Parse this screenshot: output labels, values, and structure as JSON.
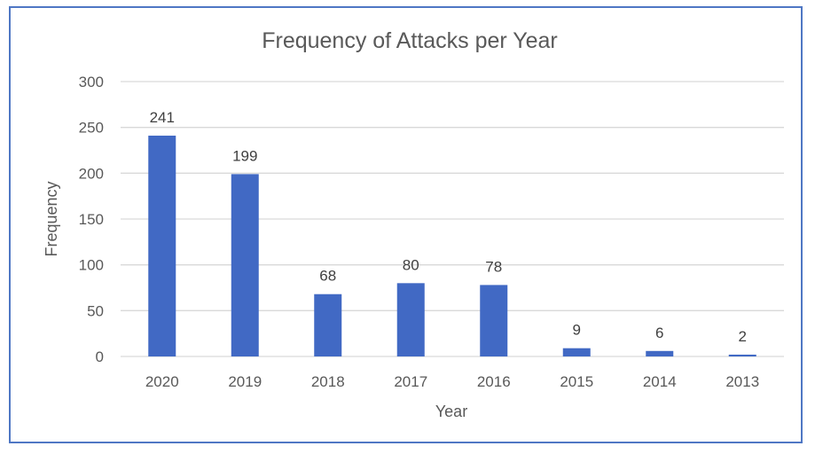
{
  "chart_data": {
    "type": "bar",
    "title": "Frequency of Attacks per Year",
    "xlabel": "Year",
    "ylabel": "Frequency",
    "categories": [
      "2020",
      "2019",
      "2018",
      "2017",
      "2016",
      "2015",
      "2014",
      "2013"
    ],
    "values": [
      241,
      199,
      68,
      80,
      78,
      9,
      6,
      2
    ],
    "data_labels": [
      "241",
      "199",
      "68",
      "80",
      "78",
      "9",
      "6",
      "2"
    ],
    "y_ticks": [
      "0",
      "50",
      "100",
      "150",
      "200",
      "250",
      "300"
    ],
    "ylim": [
      0,
      300
    ],
    "grid": true,
    "legend": "none",
    "colors": {
      "bar": "#4169c4",
      "frame": "#4f77c4",
      "grid": "#d9d9d9"
    }
  }
}
